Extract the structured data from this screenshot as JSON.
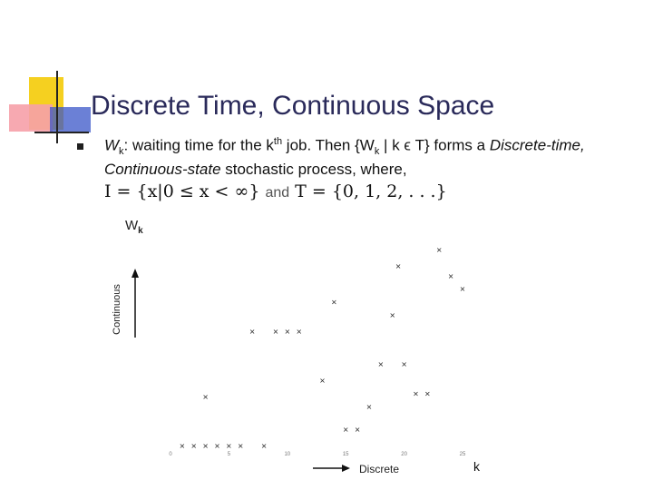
{
  "slide": {
    "title": "Discrete Time, Continuous Space",
    "bullet_line1_a": "W",
    "bullet_line1_sub": "k",
    "bullet_line1_b": ": waiting time for the k",
    "bullet_line1_sup": "th",
    "bullet_line1_c": " job. Then {W",
    "bullet_line1_sub2": "k",
    "bullet_line1_d": " | k ϵ T} forms a ",
    "bullet_line1_e": "Discrete-time,",
    "bullet_line2_a": "Continuous-state",
    "bullet_line2_b": " stochastic process, where,",
    "formula_left": "I = {x|0 ≤ x < ∞}",
    "formula_and": "and",
    "formula_right": "T = {0, 1, 2, . . .}",
    "y_label_main": "W",
    "y_label_sub": "k",
    "y_axis_annotation": "Continuous",
    "x_axis_annotation": "Discrete",
    "x_label": "k"
  },
  "colors": {
    "title": "#2a2a5a",
    "deco_yellow": "#f5d020",
    "deco_red": "#f03040",
    "deco_blue": "#3a55c8"
  },
  "chart_data": {
    "type": "scatter",
    "xlabel": "k",
    "ylabel": "Wk",
    "xlim": [
      0,
      25
    ],
    "ylim": [
      0,
      3.5
    ],
    "x_ticks": [
      "0",
      "5",
      "10",
      "15",
      "20",
      "25"
    ],
    "marker": "x",
    "points": [
      [
        1,
        0
      ],
      [
        2,
        0
      ],
      [
        3,
        0
      ],
      [
        4,
        0
      ],
      [
        5,
        0
      ],
      [
        6,
        0
      ],
      [
        8,
        0
      ],
      [
        3,
        0.75
      ],
      [
        7,
        1.75
      ],
      [
        9,
        1.75
      ],
      [
        10,
        1.75
      ],
      [
        11,
        1.75
      ],
      [
        13,
        1.0
      ],
      [
        15,
        0.25
      ],
      [
        16,
        0.25
      ],
      [
        17,
        0.6
      ],
      [
        18,
        1.25
      ],
      [
        19,
        2.0
      ],
      [
        20,
        1.25
      ],
      [
        21,
        0.8
      ],
      [
        22,
        0.8
      ],
      [
        23,
        3.0
      ],
      [
        24,
        2.6
      ],
      [
        25,
        2.4
      ],
      [
        14,
        2.2
      ],
      [
        19.5,
        2.75
      ]
    ]
  }
}
